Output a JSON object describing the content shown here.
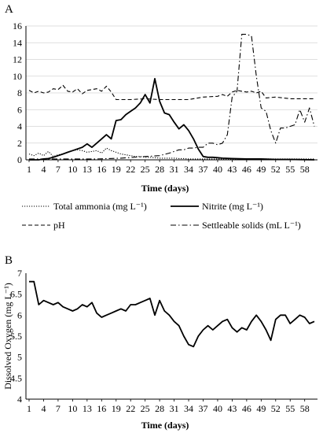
{
  "chart_data": [
    {
      "panel": "A",
      "type": "line",
      "xlabel": "Time (days)",
      "ylabel": "",
      "xlim": [
        1,
        60
      ],
      "ylim": [
        0,
        16
      ],
      "y_ticks": [
        0,
        2,
        4,
        6,
        8,
        10,
        12,
        14,
        16
      ],
      "x_ticks": [
        1,
        4,
        7,
        10,
        13,
        16,
        19,
        22,
        25,
        28,
        31,
        34,
        37,
        40,
        43,
        46,
        49,
        52,
        55,
        58
      ],
      "legend_position": "bottom",
      "series": [
        {
          "name": "Total ammonia (mg L⁻¹)",
          "style": "dotted",
          "points": [
            [
              1,
              0.7
            ],
            [
              2,
              0.5
            ],
            [
              3,
              0.8
            ],
            [
              4,
              0.5
            ],
            [
              5,
              1.0
            ],
            [
              6,
              0.4
            ],
            [
              7,
              0.6
            ],
            [
              8,
              0.7
            ],
            [
              9,
              0.9
            ],
            [
              10,
              1.1
            ],
            [
              11,
              1.2
            ],
            [
              12,
              1.1
            ],
            [
              13,
              0.9
            ],
            [
              14,
              1.0
            ],
            [
              15,
              1.1
            ],
            [
              16,
              0.8
            ],
            [
              17,
              1.4
            ],
            [
              18,
              1.1
            ],
            [
              19,
              0.9
            ],
            [
              20,
              0.7
            ],
            [
              21,
              0.6
            ],
            [
              22,
              0.5
            ],
            [
              23,
              0.4
            ],
            [
              24,
              0.4
            ],
            [
              25,
              0.3
            ],
            [
              26,
              0.3
            ],
            [
              27,
              0.25
            ],
            [
              28,
              0.2
            ],
            [
              29,
              0.2
            ],
            [
              30,
              0.2
            ],
            [
              31,
              0.2
            ],
            [
              32,
              0.15
            ],
            [
              33,
              0.15
            ],
            [
              34,
              0.1
            ],
            [
              35,
              0.1
            ],
            [
              36,
              0.1
            ],
            [
              37,
              0.1
            ],
            [
              40,
              0.1
            ],
            [
              43,
              0.1
            ],
            [
              46,
              0.1
            ],
            [
              49,
              0.1
            ],
            [
              52,
              0.1
            ],
            [
              55,
              0.1
            ],
            [
              58,
              0.1
            ],
            [
              60,
              0.1
            ]
          ]
        },
        {
          "name": "Nitrite (mg L⁻¹)",
          "style": "solid",
          "points": [
            [
              1,
              0
            ],
            [
              3,
              0
            ],
            [
              4,
              0.1
            ],
            [
              5,
              0.15
            ],
            [
              6,
              0.3
            ],
            [
              7,
              0.5
            ],
            [
              8,
              0.7
            ],
            [
              9,
              0.9
            ],
            [
              10,
              1.1
            ],
            [
              11,
              1.3
            ],
            [
              12,
              1.5
            ],
            [
              13,
              1.9
            ],
            [
              14,
              1.5
            ],
            [
              15,
              2.0
            ],
            [
              16,
              2.5
            ],
            [
              17,
              3.0
            ],
            [
              18,
              2.5
            ],
            [
              19,
              4.7
            ],
            [
              20,
              4.8
            ],
            [
              21,
              5.4
            ],
            [
              22,
              5.8
            ],
            [
              23,
              6.2
            ],
            [
              24,
              6.8
            ],
            [
              25,
              7.8
            ],
            [
              26,
              6.8
            ],
            [
              27,
              9.7
            ],
            [
              28,
              7.0
            ],
            [
              29,
              5.6
            ],
            [
              30,
              5.4
            ],
            [
              31,
              4.5
            ],
            [
              32,
              3.7
            ],
            [
              33,
              4.2
            ],
            [
              34,
              3.5
            ],
            [
              35,
              2.5
            ],
            [
              36,
              1.3
            ],
            [
              37,
              0.4
            ],
            [
              38,
              0.3
            ],
            [
              39,
              0.3
            ],
            [
              40,
              0.25
            ],
            [
              41,
              0.2
            ],
            [
              43,
              0.15
            ],
            [
              46,
              0.1
            ],
            [
              49,
              0.1
            ],
            [
              52,
              0.05
            ],
            [
              55,
              0.05
            ],
            [
              60,
              0
            ]
          ]
        },
        {
          "name": "pH",
          "style": "dashed",
          "points": [
            [
              1,
              8.3
            ],
            [
              2,
              8.0
            ],
            [
              3,
              8.2
            ],
            [
              4,
              8.0
            ],
            [
              5,
              8.1
            ],
            [
              6,
              8.5
            ],
            [
              7,
              8.4
            ],
            [
              8,
              8.9
            ],
            [
              9,
              8.2
            ],
            [
              10,
              8.1
            ],
            [
              11,
              8.5
            ],
            [
              12,
              7.9
            ],
            [
              13,
              8.3
            ],
            [
              14,
              8.4
            ],
            [
              15,
              8.5
            ],
            [
              16,
              8.2
            ],
            [
              17,
              8.8
            ],
            [
              18,
              8.1
            ],
            [
              19,
              7.2
            ],
            [
              22,
              7.2
            ],
            [
              25,
              7.3
            ],
            [
              28,
              7.2
            ],
            [
              31,
              7.2
            ],
            [
              34,
              7.2
            ],
            [
              37,
              7.5
            ],
            [
              40,
              7.6
            ],
            [
              41,
              7.8
            ],
            [
              42,
              7.6
            ],
            [
              43,
              8.1
            ],
            [
              44,
              8.3
            ],
            [
              45,
              8.2
            ],
            [
              46,
              8.1
            ],
            [
              47,
              8.2
            ],
            [
              48,
              8.0
            ],
            [
              49,
              8.2
            ],
            [
              50,
              7.4
            ],
            [
              52,
              7.5
            ],
            [
              55,
              7.3
            ],
            [
              58,
              7.3
            ],
            [
              60,
              7.3
            ]
          ]
        },
        {
          "name": "Settleable solids (mL L⁻¹)",
          "style": "dashdot",
          "points": [
            [
              1,
              0.1
            ],
            [
              5,
              0.1
            ],
            [
              10,
              0.1
            ],
            [
              15,
              0.1
            ],
            [
              20,
              0.2
            ],
            [
              25,
              0.4
            ],
            [
              28,
              0.5
            ],
            [
              30,
              0.8
            ],
            [
              31,
              1.0
            ],
            [
              32,
              1.2
            ],
            [
              33,
              1.2
            ],
            [
              34,
              1.4
            ],
            [
              35,
              1.4
            ],
            [
              36,
              1.5
            ],
            [
              37,
              1.5
            ],
            [
              38,
              2.0
            ],
            [
              39,
              2.0
            ],
            [
              40,
              1.8
            ],
            [
              41,
              2.0
            ],
            [
              42,
              3.0
            ],
            [
              43,
              7.5
            ],
            [
              44,
              8.2
            ],
            [
              45,
              15.0
            ],
            [
              46,
              15.0
            ],
            [
              47,
              14.8
            ],
            [
              48,
              10.0
            ],
            [
              49,
              6.2
            ],
            [
              50,
              5.8
            ],
            [
              51,
              3.5
            ],
            [
              52,
              2.0
            ],
            [
              53,
              3.8
            ],
            [
              54,
              3.8
            ],
            [
              55,
              4.0
            ],
            [
              56,
              4.2
            ],
            [
              57,
              6.0
            ],
            [
              58,
              4.5
            ],
            [
              59,
              6.2
            ],
            [
              60,
              4.0
            ]
          ]
        }
      ]
    },
    {
      "panel": "B",
      "type": "line",
      "xlabel": "Time (days)",
      "ylabel": "Dissolved Oxygen (mg L⁻¹)",
      "xlim": [
        1,
        60
      ],
      "ylim": [
        4,
        7
      ],
      "y_ticks": [
        4,
        4.5,
        5,
        5.5,
        6,
        6.5,
        7
      ],
      "x_ticks": [
        1,
        4,
        7,
        10,
        13,
        16,
        19,
        22,
        25,
        28,
        31,
        34,
        37,
        40,
        43,
        46,
        49,
        52,
        55,
        58
      ],
      "series": [
        {
          "name": "",
          "style": "solid",
          "points": [
            [
              1,
              6.8
            ],
            [
              2,
              6.8
            ],
            [
              3,
              6.25
            ],
            [
              4,
              6.35
            ],
            [
              5,
              6.3
            ],
            [
              6,
              6.25
            ],
            [
              7,
              6.3
            ],
            [
              8,
              6.2
            ],
            [
              9,
              6.15
            ],
            [
              10,
              6.1
            ],
            [
              11,
              6.15
            ],
            [
              12,
              6.25
            ],
            [
              13,
              6.2
            ],
            [
              14,
              6.3
            ],
            [
              15,
              6.05
            ],
            [
              16,
              5.95
            ],
            [
              17,
              6.0
            ],
            [
              18,
              6.05
            ],
            [
              19,
              6.1
            ],
            [
              20,
              6.15
            ],
            [
              21,
              6.1
            ],
            [
              22,
              6.25
            ],
            [
              23,
              6.25
            ],
            [
              24,
              6.3
            ],
            [
              25,
              6.35
            ],
            [
              26,
              6.4
            ],
            [
              27,
              6.0
            ],
            [
              28,
              6.35
            ],
            [
              29,
              6.1
            ],
            [
              30,
              6.0
            ],
            [
              31,
              5.85
            ],
            [
              32,
              5.75
            ],
            [
              33,
              5.5
            ],
            [
              34,
              5.3
            ],
            [
              35,
              5.25
            ],
            [
              36,
              5.5
            ],
            [
              37,
              5.65
            ],
            [
              38,
              5.75
            ],
            [
              39,
              5.65
            ],
            [
              40,
              5.75
            ],
            [
              41,
              5.85
            ],
            [
              42,
              5.9
            ],
            [
              43,
              5.7
            ],
            [
              44,
              5.6
            ],
            [
              45,
              5.7
            ],
            [
              46,
              5.65
            ],
            [
              47,
              5.85
            ],
            [
              48,
              6.0
            ],
            [
              49,
              5.85
            ],
            [
              50,
              5.65
            ],
            [
              51,
              5.4
            ],
            [
              52,
              5.9
            ],
            [
              53,
              6.0
            ],
            [
              54,
              6.0
            ],
            [
              55,
              5.8
            ],
            [
              56,
              5.9
            ],
            [
              57,
              6.0
            ],
            [
              58,
              5.95
            ],
            [
              59,
              5.8
            ],
            [
              60,
              5.85
            ]
          ]
        }
      ]
    }
  ],
  "panel_labels": [
    "A",
    "B"
  ]
}
